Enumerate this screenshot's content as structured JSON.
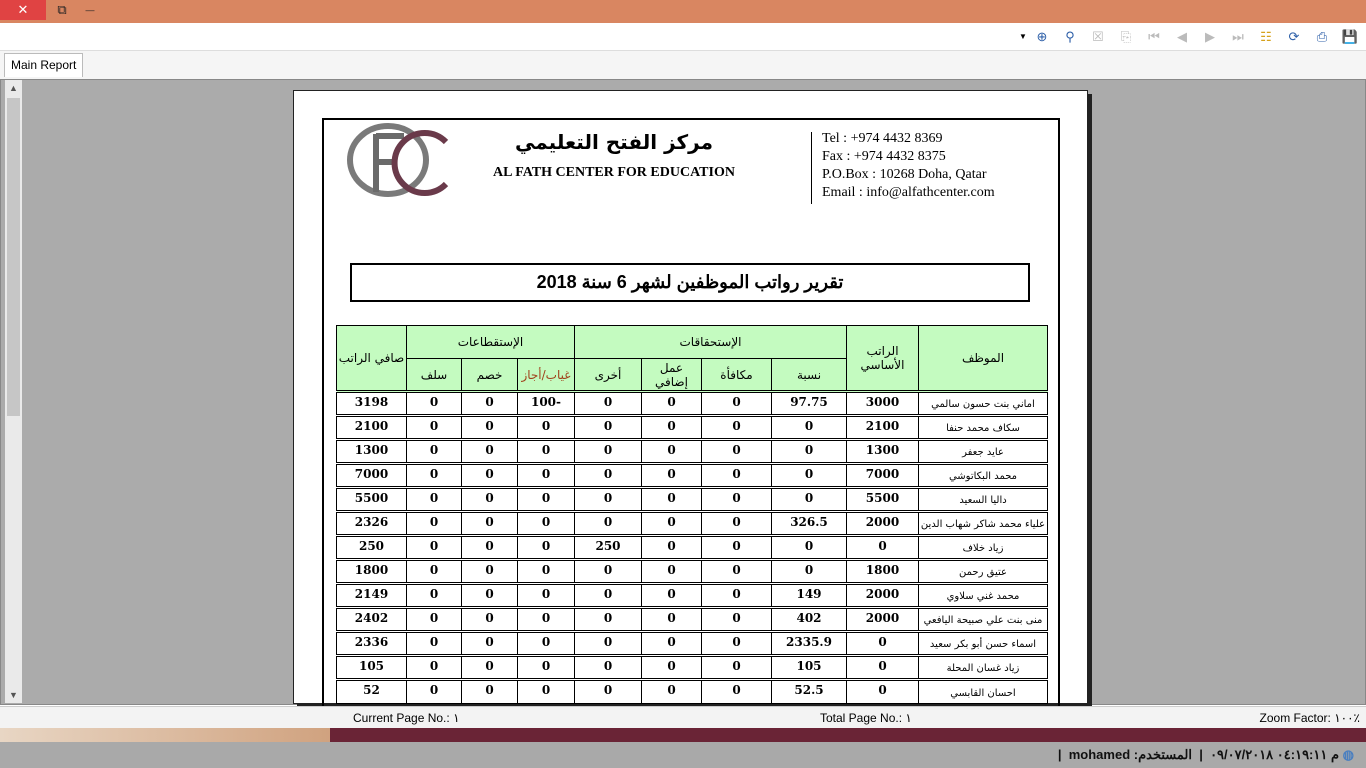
{
  "window": {
    "close": "✕",
    "restore": "⧉",
    "minimize": "—"
  },
  "toolbar": {
    "icons": [
      "dropdown-icon",
      "search-plus-icon",
      "search-icon",
      "close-doc-icon",
      "export-icon",
      "first-page-icon",
      "prev-page-icon",
      "next-page-icon",
      "last-page-icon",
      "tree-icon",
      "refresh-icon",
      "print-icon",
      "save-icon"
    ]
  },
  "tabs": [
    {
      "label": "Main Report"
    }
  ],
  "header": {
    "ar_name": "مركز الفتح التعليمي",
    "en_name": "AL FATH CENTER FOR EDUCATION",
    "tel": "Tel : +974 4432 8369",
    "fax": "Fax : +974 4432 8375",
    "pobox": "P.O.Box : 10268 Doha, Qatar",
    "email": "Email : info@alfathcenter.com"
  },
  "report_title": "تقرير رواتب الموظفين لشهر 6  سنة 2018",
  "table": {
    "headers": {
      "employee": "الموظف",
      "basic": "الراتب الأساسي",
      "entitlements": "الإستحقاقات",
      "deductions": "الإستقطاعات",
      "net": "صافي الراتب",
      "percent": "نسبة",
      "bonus": "مكافأة",
      "overtime": "عمل إضافي",
      "other": "أخرى",
      "absence": "غياب/أجاز",
      "discount": "خصم",
      "advance": "سلف"
    },
    "rows": [
      [
        "اماني بنت حسون سالمي",
        "3000",
        "97.75",
        "0",
        "0",
        "0",
        "-100",
        "0",
        "0",
        "3198"
      ],
      [
        "سكاف محمد حنفا",
        "2100",
        "0",
        "0",
        "0",
        "0",
        "0",
        "0",
        "0",
        "2100"
      ],
      [
        "عايد جعفر",
        "1300",
        "0",
        "0",
        "0",
        "0",
        "0",
        "0",
        "0",
        "1300"
      ],
      [
        "محمد البكاتوشي",
        "7000",
        "0",
        "0",
        "0",
        "0",
        "0",
        "0",
        "0",
        "7000"
      ],
      [
        "داليا السعيد",
        "5500",
        "0",
        "0",
        "0",
        "0",
        "0",
        "0",
        "0",
        "5500"
      ],
      [
        "علياء محمد شاكر شهاب الدين",
        "2000",
        "326.5",
        "0",
        "0",
        "0",
        "0",
        "0",
        "0",
        "2326"
      ],
      [
        "زياد خلاف",
        "0",
        "0",
        "0",
        "0",
        "250",
        "0",
        "0",
        "0",
        "250"
      ],
      [
        "عتيق رحمن",
        "1800",
        "0",
        "0",
        "0",
        "0",
        "0",
        "0",
        "0",
        "1800"
      ],
      [
        "محمد غني سلاوي",
        "2000",
        "149",
        "0",
        "0",
        "0",
        "0",
        "0",
        "0",
        "2149"
      ],
      [
        "منى بنت علي صبيحة اليافعي",
        "2000",
        "402",
        "0",
        "0",
        "0",
        "0",
        "0",
        "0",
        "2402"
      ],
      [
        "اسماء حسن أبو بكر سعيد",
        "0",
        "2335.9",
        "0",
        "0",
        "0",
        "0",
        "0",
        "0",
        "2336"
      ],
      [
        "زياد غسان المحلة",
        "0",
        "105",
        "0",
        "0",
        "0",
        "0",
        "0",
        "0",
        "105"
      ],
      [
        "احسان القابسي",
        "0",
        "52.5",
        "0",
        "0",
        "0",
        "0",
        "0",
        "0",
        "52"
      ]
    ]
  },
  "status": {
    "current_page": "Current Page No.: ١",
    "total_page": "Total Page No.: ١",
    "zoom": "Zoom Factor: ١٠٠٪"
  },
  "bottom": {
    "time": "م ٠٤:١٩:١١ ٠٩/٠٧/٢٠١٨",
    "sep1": "|",
    "user": "المستخدم: mohamed",
    "sep2": "|"
  }
}
